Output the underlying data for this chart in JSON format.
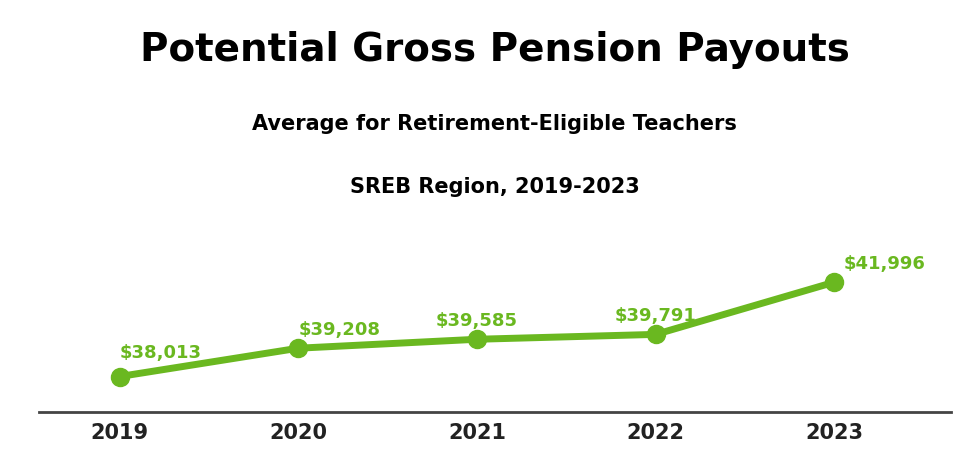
{
  "title": "Potential Gross Pension Payouts",
  "subtitle1": "Average for Retirement-Eligible Teachers",
  "subtitle2": "SREB Region, 2019-2023",
  "years": [
    2019,
    2020,
    2021,
    2022,
    2023
  ],
  "values": [
    38013,
    39208,
    39585,
    39791,
    41996
  ],
  "labels": [
    "$38,013",
    "$39,208",
    "$39,585",
    "$39,791",
    "$41,996"
  ],
  "line_color": "#6ab820",
  "label_color": "#6ab820",
  "marker_color": "#6ab820",
  "title_color": "#000000",
  "subtitle_color": "#000000",
  "bg_color": "#ffffff",
  "ylim_min": 36500,
  "ylim_max": 44500,
  "title_fontsize": 28,
  "subtitle_fontsize": 15,
  "label_fontsize": 13,
  "tick_fontsize": 15,
  "line_width": 5,
  "marker_size": 13
}
